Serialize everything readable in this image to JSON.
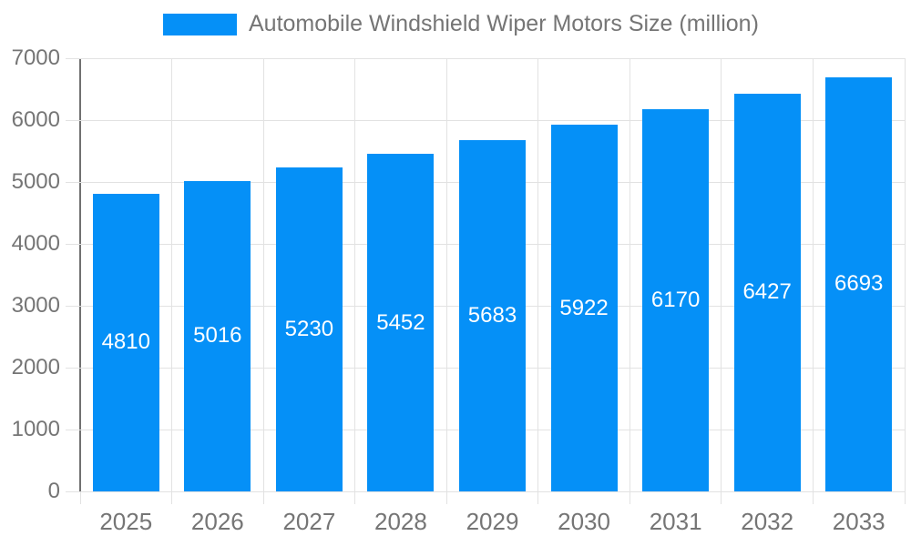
{
  "legend": {
    "label": "Automobile Windshield Wiper Motors Size (million)",
    "swatch_icon": "legend-color-swatch"
  },
  "chart_data": {
    "type": "bar",
    "title": "Automobile Windshield Wiper Motors Size (million)",
    "categories": [
      "2025",
      "2026",
      "2027",
      "2028",
      "2029",
      "2030",
      "2031",
      "2032",
      "2033"
    ],
    "values": [
      4810,
      5016,
      5230,
      5452,
      5683,
      5922,
      6170,
      6427,
      6693
    ],
    "xlabel": "",
    "ylabel": "",
    "ylim": [
      0,
      7000
    ],
    "ytick_step": 1000,
    "yticks": [
      0,
      1000,
      2000,
      3000,
      4000,
      5000,
      6000,
      7000
    ],
    "grid": true,
    "legend_position": "top",
    "bar_labels_inside": true,
    "colors": {
      "bar": "#0590F7",
      "bar_value_label": "#ffffff",
      "axis_text": "#757575",
      "gridline": "#e2e2e2",
      "axis_line": "#707070",
      "background": "#ffffff"
    }
  }
}
